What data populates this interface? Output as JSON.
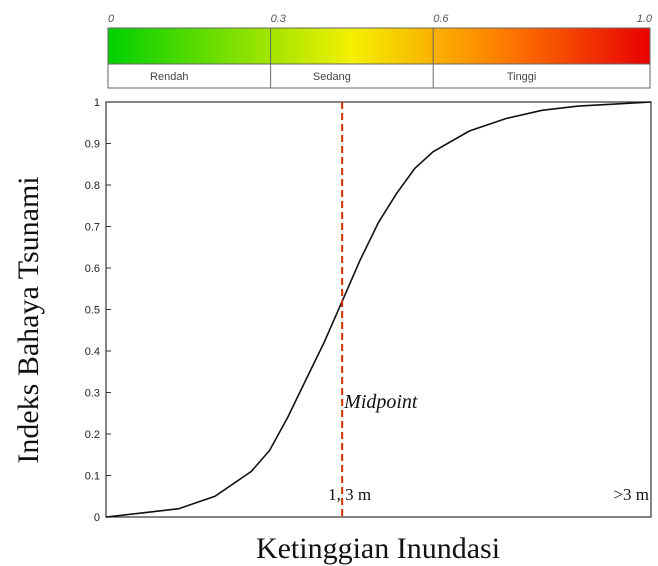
{
  "chart_data": {
    "type": "line",
    "xlabel": "Ketinggian Inundasi",
    "ylabel": "Indeks Bahaya Tsunami",
    "ylim": [
      0,
      1
    ],
    "yticks": [
      "0",
      "0.1",
      "0.2",
      "0.3",
      "0.4",
      "0.5",
      "0.6",
      "0.7",
      "0.8",
      "0.9",
      "1"
    ],
    "x_unit": "m",
    "xlim": [
      0,
      3
    ],
    "series": [
      {
        "x": [
          0,
          0.2,
          0.4,
          0.6,
          0.8,
          0.9,
          1.0,
          1.1,
          1.2,
          1.3,
          1.4,
          1.5,
          1.6,
          1.7,
          1.8,
          2.0,
          2.2,
          2.4,
          2.6,
          2.8,
          3.0
        ],
        "y": [
          0.0,
          0.01,
          0.02,
          0.05,
          0.11,
          0.16,
          0.24,
          0.33,
          0.42,
          0.52,
          0.62,
          0.71,
          0.78,
          0.84,
          0.88,
          0.93,
          0.96,
          0.98,
          0.99,
          0.995,
          1.0
        ],
        "color": "#111111"
      }
    ],
    "annotations": {
      "midpoint_label": "Midpoint",
      "midpoint_x": 1.3,
      "midpoint_value_label": "1, 3 m",
      "max_label": ">3 m",
      "midpoint_line_color": "#cc3300"
    },
    "color_scale": {
      "ticks": [
        "0",
        "0.3",
        "0.6",
        "1.0"
      ],
      "tick_values": [
        0,
        0.3,
        0.6,
        1.0
      ],
      "categories": [
        "Rendah",
        "Sedang",
        "Tinggi"
      ],
      "colors": [
        "#00d000",
        "#f4f000",
        "#ff8000",
        "#e80000"
      ]
    }
  }
}
